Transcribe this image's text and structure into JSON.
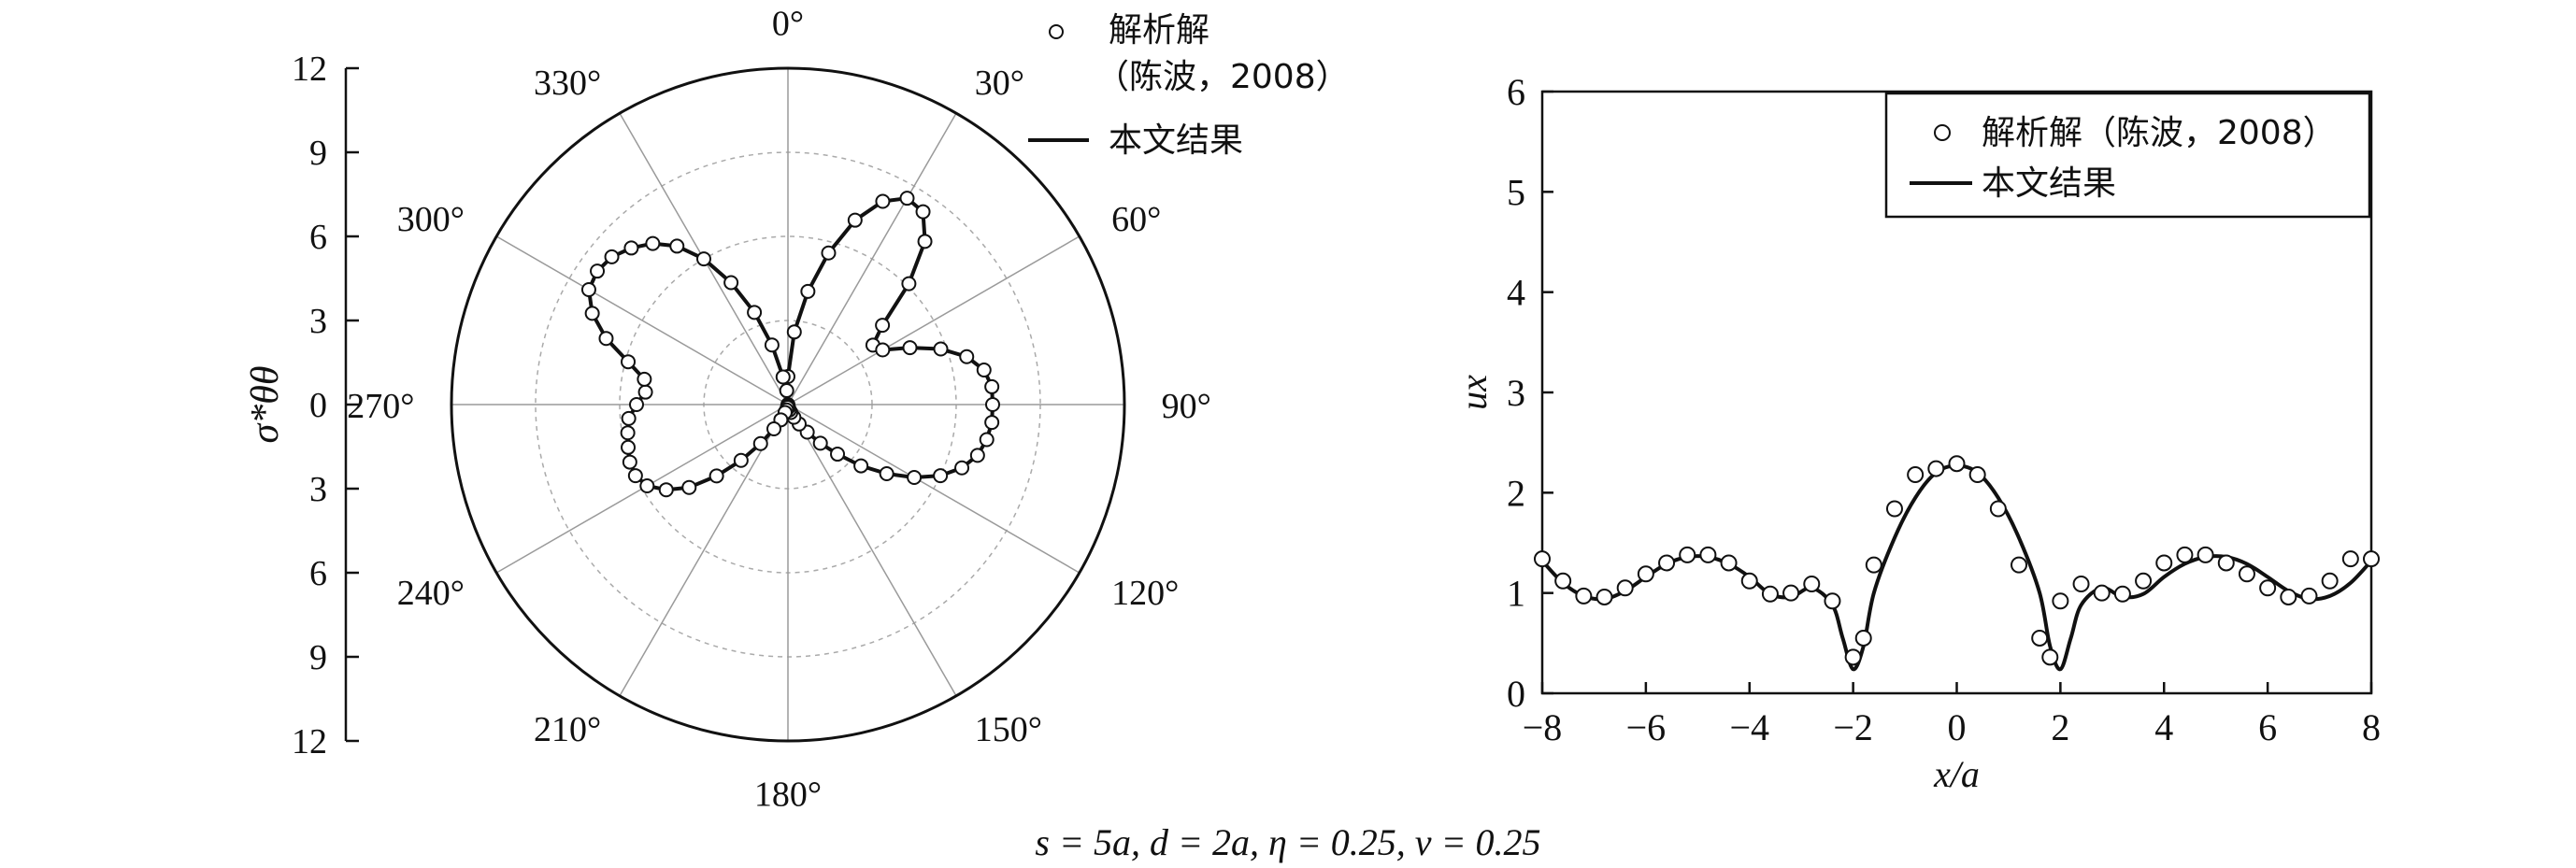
{
  "caption": "s = 5a, d = 2a, η = 0.25, v = 0.25",
  "chart_data": [
    {
      "type": "polar",
      "ylabel": "σ*θθ",
      "radial_range": [
        0,
        12
      ],
      "radial_ticks": [
        12,
        9,
        6,
        3,
        0,
        3,
        6,
        9,
        12
      ],
      "angle_ticks": [
        "0°",
        "30°",
        "60°",
        "90°",
        "120°",
        "150°",
        "180°",
        "210°",
        "240°",
        "270°",
        "300°",
        "330°"
      ],
      "grid": true,
      "legend": {
        "position": "top-right",
        "entries": [
          {
            "marker": "circle",
            "label_lines": [
              "解析解",
              "（陈波，2008）"
            ]
          },
          {
            "marker": "line",
            "label_lines": [
              "本文结果"
            ]
          }
        ]
      },
      "theta_deg": [
        0,
        5,
        10,
        15,
        20,
        25,
        30,
        35,
        40,
        45,
        50,
        55,
        60,
        65,
        70,
        75,
        80,
        85,
        90,
        95,
        100,
        105,
        110,
        115,
        120,
        125,
        130,
        135,
        140,
        145,
        150,
        155,
        160,
        165,
        170,
        175,
        180,
        185,
        190,
        195,
        200,
        205,
        210,
        215,
        220,
        225,
        230,
        235,
        240,
        245,
        250,
        255,
        260,
        265,
        270,
        275,
        280,
        285,
        290,
        295,
        300,
        305,
        310,
        315,
        320,
        325,
        330,
        335,
        340,
        345,
        350,
        355,
        360
      ],
      "series": [
        {
          "name": "本文结果",
          "style": "solid",
          "r": [
            1.0,
            2.6,
            4.1,
            5.6,
            7.0,
            8.0,
            8.5,
            8.4,
            7.6,
            6.1,
            4.4,
            3.7,
            3.9,
            4.8,
            5.8,
            6.6,
            7.1,
            7.3,
            7.3,
            7.3,
            7.2,
            7.0,
            6.6,
            6.0,
            5.2,
            4.3,
            3.4,
            2.5,
            1.8,
            1.2,
            0.8,
            0.5,
            0.3,
            0.2,
            0.1,
            0.05,
            0.0,
            0.05,
            0.1,
            0.2,
            0.3,
            0.6,
            1.0,
            1.7,
            2.6,
            3.6,
            4.6,
            5.3,
            5.8,
            6.0,
            6.0,
            5.9,
            5.8,
            5.7,
            5.4,
            5.1,
            5.2,
            5.9,
            6.9,
            7.7,
            8.2,
            8.3,
            8.2,
            7.9,
            7.5,
            6.9,
            6.0,
            4.8,
            3.5,
            2.2,
            1.0,
            0.5,
            1.0
          ]
        },
        {
          "name": "解析解（陈波，2008）",
          "style": "open-circle",
          "r": [
            1.0,
            2.6,
            4.1,
            5.6,
            7.0,
            8.0,
            8.5,
            8.4,
            7.6,
            6.1,
            4.4,
            3.7,
            3.9,
            4.8,
            5.8,
            6.6,
            7.1,
            7.3,
            7.3,
            7.3,
            7.2,
            7.0,
            6.6,
            6.0,
            5.2,
            4.3,
            3.4,
            2.5,
            1.8,
            1.2,
            0.8,
            0.5,
            0.3,
            0.2,
            0.1,
            0.05,
            0.0,
            0.05,
            0.1,
            0.2,
            0.3,
            0.6,
            1.0,
            1.7,
            2.6,
            3.6,
            4.6,
            5.3,
            5.8,
            6.0,
            6.0,
            5.9,
            5.8,
            5.7,
            5.4,
            5.1,
            5.2,
            5.9,
            6.9,
            7.7,
            8.2,
            8.3,
            8.2,
            7.9,
            7.5,
            6.9,
            6.0,
            4.8,
            3.5,
            2.2,
            1.0,
            0.5,
            1.0
          ]
        }
      ]
    },
    {
      "type": "line",
      "xlabel": "x/a",
      "ylabel": "ux",
      "xlim": [
        -8,
        8
      ],
      "ylim": [
        0,
        6
      ],
      "x_ticks": [
        "−8",
        "−6",
        "−4",
        "−2",
        "0",
        "2",
        "4",
        "6",
        "8"
      ],
      "y_ticks": [
        "0",
        "1",
        "2",
        "3",
        "4",
        "5",
        "6"
      ],
      "grid": false,
      "legend": {
        "position": "top-right",
        "entries": [
          {
            "marker": "circle",
            "label": "解析解（陈波，2008）"
          },
          {
            "marker": "line",
            "label": "本文结果"
          }
        ]
      },
      "series": [
        {
          "name": "本文结果",
          "style": "solid",
          "x": [
            -8,
            -7.6,
            -7.2,
            -6.8,
            -6.4,
            -6.0,
            -5.6,
            -5.2,
            -4.8,
            -4.4,
            -4.0,
            -3.6,
            -3.2,
            -2.8,
            -2.4,
            -2.2,
            -2.0,
            -1.8,
            -1.6,
            -1.2,
            -0.8,
            -0.4,
            0,
            0.4,
            0.8,
            1.2,
            1.6,
            1.8,
            2.0,
            2.2,
            2.4,
            2.8,
            3.2,
            3.6,
            4.0,
            4.4,
            4.8,
            5.2,
            5.6,
            6.0,
            6.4,
            6.8,
            7.2,
            7.6,
            8
          ],
          "y": [
            1.32,
            1.1,
            0.97,
            0.94,
            1.02,
            1.16,
            1.29,
            1.36,
            1.36,
            1.29,
            1.16,
            0.99,
            0.96,
            1.05,
            0.88,
            0.55,
            0.24,
            0.47,
            1.0,
            1.55,
            1.95,
            2.2,
            2.27,
            2.2,
            1.95,
            1.55,
            1.0,
            0.47,
            0.24,
            0.55,
            0.88,
            1.05,
            0.96,
            0.99,
            1.16,
            1.29,
            1.36,
            1.36,
            1.29,
            1.16,
            1.02,
            0.94,
            0.97,
            1.1,
            1.32
          ]
        },
        {
          "name": "解析解（陈波，2008）",
          "style": "open-circle",
          "x": [
            -8,
            -7.6,
            -7.2,
            -6.8,
            -6.4,
            -6.0,
            -5.6,
            -5.2,
            -4.8,
            -4.4,
            -4.0,
            -3.6,
            -3.2,
            -2.8,
            -2.4,
            -2.0,
            -1.8,
            -1.6,
            -1.2,
            -0.8,
            -0.4,
            0,
            0.4,
            0.8,
            1.2,
            1.6,
            1.8,
            2.0,
            2.4,
            2.8,
            3.2,
            3.6,
            4.0,
            4.4,
            4.8,
            5.2,
            5.6,
            6.0,
            6.4,
            6.8,
            7.2,
            7.6,
            8
          ],
          "y": [
            1.34,
            1.12,
            0.97,
            0.96,
            1.05,
            1.19,
            1.3,
            1.38,
            1.38,
            1.3,
            1.12,
            0.99,
            1.0,
            1.09,
            0.92,
            0.36,
            0.55,
            1.28,
            1.84,
            2.18,
            2.24,
            2.29,
            2.18,
            1.84,
            1.28,
            0.55,
            0.36,
            0.92,
            1.09,
            1.0,
            0.99,
            1.12,
            1.3,
            1.38,
            1.38,
            1.3,
            1.19,
            1.05,
            0.96,
            0.97,
            1.12,
            1.34,
            1.34
          ]
        }
      ]
    }
  ]
}
